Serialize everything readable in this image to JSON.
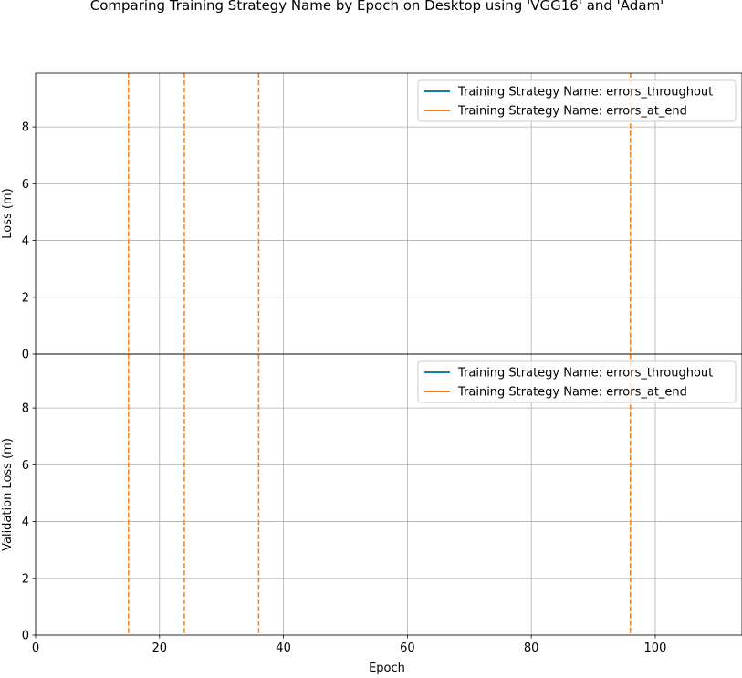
{
  "figure": {
    "title": "Comparing Training Strategy Name by Epoch on Desktop using 'VGG16' and 'Adam'",
    "xlabel": "Epoch",
    "colors": {
      "errors_throughout": "#1f77b4",
      "errors_at_end": "#ff7f0e",
      "grid": "#b0b0b0"
    }
  },
  "chart_data": [
    {
      "type": "line",
      "title": "",
      "xlabel": "",
      "ylabel": "Loss (m)",
      "xlim": [
        0,
        114
      ],
      "ylim": [
        0,
        9.9
      ],
      "xticks": [
        0,
        20,
        40,
        60,
        80,
        100
      ],
      "yticks": [
        0,
        2,
        4,
        6,
        8
      ],
      "grid": true,
      "legend_position": "top-right",
      "series": [
        {
          "name": "Training Strategy Name: errors_throughout",
          "color": "#1f77b4",
          "x": [],
          "y": []
        },
        {
          "name": "Training Strategy Name: errors_at_end",
          "color": "#ff7f0e",
          "x": [],
          "y": []
        }
      ],
      "vlines": {
        "x": [
          15,
          24,
          36,
          96
        ],
        "color": "#ff7f0e",
        "style": "dashed"
      }
    },
    {
      "type": "line",
      "title": "",
      "xlabel": "Epoch",
      "ylabel": "Validation Loss (m)",
      "xlim": [
        0,
        114
      ],
      "ylim": [
        0,
        9.9
      ],
      "xticks": [
        0,
        20,
        40,
        60,
        80,
        100
      ],
      "yticks": [
        0,
        2,
        4,
        6,
        8
      ],
      "grid": true,
      "legend_position": "top-right",
      "series": [
        {
          "name": "Training Strategy Name: errors_throughout",
          "color": "#1f77b4",
          "x": [],
          "y": []
        },
        {
          "name": "Training Strategy Name: errors_at_end",
          "color": "#ff7f0e",
          "x": [],
          "y": []
        }
      ],
      "vlines": {
        "x": [
          15,
          24,
          36,
          96
        ],
        "color": "#ff7f0e",
        "style": "dashed"
      }
    }
  ]
}
